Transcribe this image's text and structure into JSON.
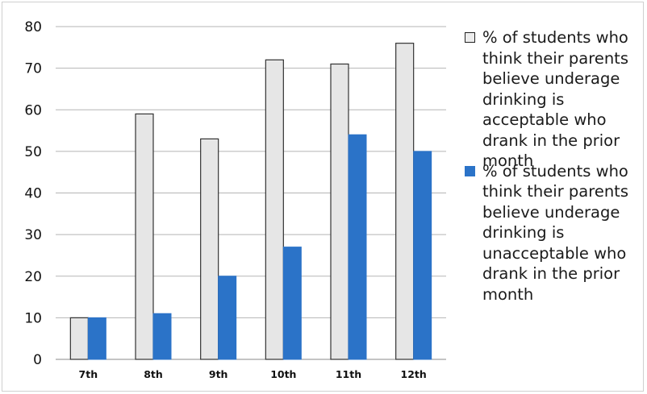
{
  "chart_data": {
    "type": "bar",
    "categories": [
      "7th",
      "8th",
      "9th",
      "10th",
      "11th",
      "12th"
    ],
    "series": [
      {
        "name": "% of students who think their parents believe underage drinking is acceptable who drank in the prior month",
        "color": "#e6e6e6",
        "values": [
          10,
          59,
          53,
          72,
          71,
          76
        ]
      },
      {
        "name": "% of students who think their parents believe underage drinking is unacceptable who drank in the prior month",
        "color": "#2b73c8",
        "values": [
          10,
          11,
          20,
          27,
          54,
          50
        ]
      }
    ],
    "yticks": [
      0,
      10,
      20,
      30,
      40,
      50,
      60,
      70,
      80
    ],
    "ylim": [
      0,
      80
    ],
    "grid": true,
    "legend_position": "right"
  }
}
